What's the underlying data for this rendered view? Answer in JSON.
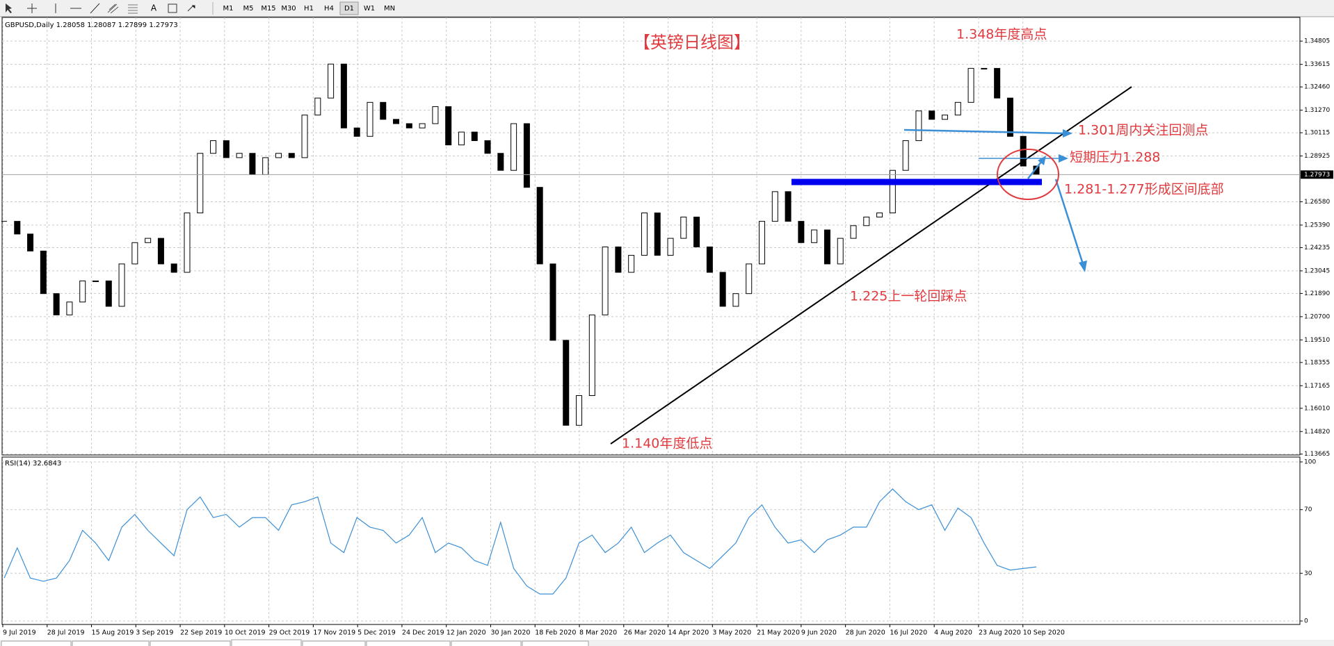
{
  "toolbar": {
    "text_tool": "A",
    "timeframes": [
      "M1",
      "M5",
      "M15",
      "M30",
      "H1",
      "H4",
      "D1",
      "W1",
      "MN"
    ]
  },
  "chart_data": [
    {
      "type": "candlestick",
      "title": "GBPUSD,Daily",
      "ohlc": [
        1.28058,
        1.28087,
        1.27899,
        1.27973
      ],
      "values": [
        1.2558,
        1.2493,
        1.2406,
        1.2188,
        1.2079,
        1.2145,
        1.2253,
        1.2253,
        1.2123,
        1.234,
        1.2449,
        1.2471,
        1.234,
        1.2297,
        1.2601,
        1.2906,
        1.2971,
        1.2884,
        1.2906,
        1.2797,
        1.2884,
        1.2906,
        1.2884,
        1.3102,
        1.3189,
        1.3363,
        1.3036,
        1.2993,
        1.3167,
        1.308,
        1.3058,
        1.3036,
        1.3058,
        1.3145,
        1.2949,
        1.3015,
        1.2971,
        1.2906,
        1.2819,
        1.3058,
        1.2732,
        1.234,
        1.1949,
        1.1514,
        1.1666,
        1.2079,
        1.2427,
        1.2297,
        1.2384,
        1.2601,
        1.2384,
        1.2471,
        1.258,
        1.2427,
        1.2297,
        1.2123,
        1.2188,
        1.234,
        1.2558,
        1.271,
        1.2558,
        1.2449,
        1.2514,
        1.234,
        1.2471,
        1.2536,
        1.258,
        1.2601,
        1.2819,
        1.2971,
        1.3123,
        1.308,
        1.3102,
        1.3167,
        1.3341,
        1.3341,
        1.3189,
        1.2993,
        1.2841,
        1.2797
      ],
      "ylim": [
        1.1362,
        1.3602
      ],
      "yticks": [
        1.34805,
        1.33615,
        {
          "value": 1.3246,
          "label": "1.32460"
        },
        {
          "value": 1.3127,
          "label": "1.31270"
        },
        1.30115,
        1.28925,
        {
          "value": 1.2658,
          "label": "1.26580"
        },
        {
          "value": 1.2539,
          "label": "1.25390"
        },
        1.24235,
        1.23045,
        {
          "value": 1.2189,
          "label": "1.21890"
        },
        {
          "value": 1.207,
          "label": "1.20700"
        },
        {
          "value": 1.1951,
          "label": "1.19510"
        },
        1.18355,
        1.17165,
        {
          "value": 1.1601,
          "label": "1.16010"
        },
        {
          "value": 1.1482,
          "label": "1.14820"
        },
        1.13665
      ],
      "grid": true,
      "xtick_labels": [
        "9 Jul 2019",
        "28 Jul 2019",
        "15 Aug 2019",
        "3 Sep 2019",
        "22 Sep 2019",
        "10 Oct 2019",
        "29 Oct 2019",
        "17 Nov 2019",
        "5 Dec 2019",
        "24 Dec 2019",
        "12 Jan 2020",
        "30 Jan 2020",
        "18 Feb 2020",
        "8 Mar 2020",
        "26 Mar 2020",
        "14 Apr 2020",
        "3 May 2020",
        "21 May 2020",
        "9 Jun 2020",
        "28 Jun 2020",
        "16 Jul 2020",
        "4 Aug 2020",
        "23 Aug 2020",
        "10 Sep 2020"
      ],
      "annotations": [
        "【英镑日线图】",
        "1.348年度高点",
        "1.301周内关注回测点",
        "短期压力1.288",
        "1.281-1.277形成区间底部",
        "1.225上一轮回踩点",
        "1.140年度低点"
      ]
    },
    {
      "type": "line",
      "title": "RSI(14)",
      "last_value": 32.6843,
      "color": "#3b8fd6",
      "values": [
        27,
        46,
        27,
        25,
        27,
        38,
        57,
        49,
        38,
        59,
        67,
        57,
        49,
        41,
        70,
        78,
        65,
        67,
        59,
        65,
        65,
        57,
        73,
        75,
        78,
        49,
        43,
        65,
        59,
        57,
        49,
        54,
        65,
        43,
        49,
        46,
        38,
        35,
        62,
        33,
        22,
        17,
        17,
        27,
        49,
        54,
        43,
        49,
        59,
        43,
        49,
        54,
        43,
        38,
        33,
        41,
        49,
        65,
        73,
        59,
        49,
        51,
        43,
        51,
        54,
        59,
        59,
        75,
        83,
        75,
        70,
        73,
        57,
        71,
        65,
        49,
        35,
        32,
        33,
        34
      ],
      "ylim": [
        0,
        100
      ],
      "yticks": [
        100,
        70,
        30,
        0
      ],
      "grid": true
    }
  ]
}
